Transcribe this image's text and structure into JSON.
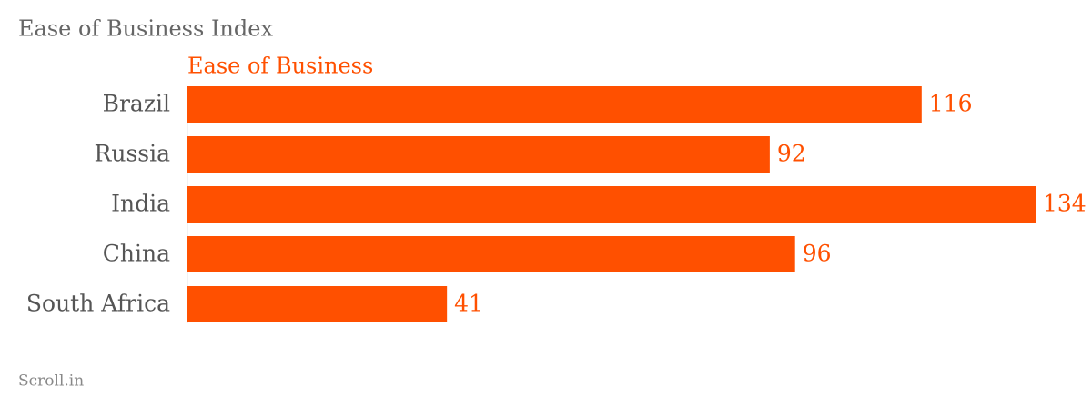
{
  "chart_data": {
    "type": "bar",
    "title": "Ease of Business Index",
    "source": "Scroll.in",
    "categories": [
      "Brazil",
      "Russia",
      "India",
      "China",
      "South Africa"
    ],
    "series": [
      {
        "name": "Ease of Business",
        "color": "#ff5000",
        "values": [
          116,
          92,
          134,
          96,
          41
        ]
      }
    ]
  }
}
